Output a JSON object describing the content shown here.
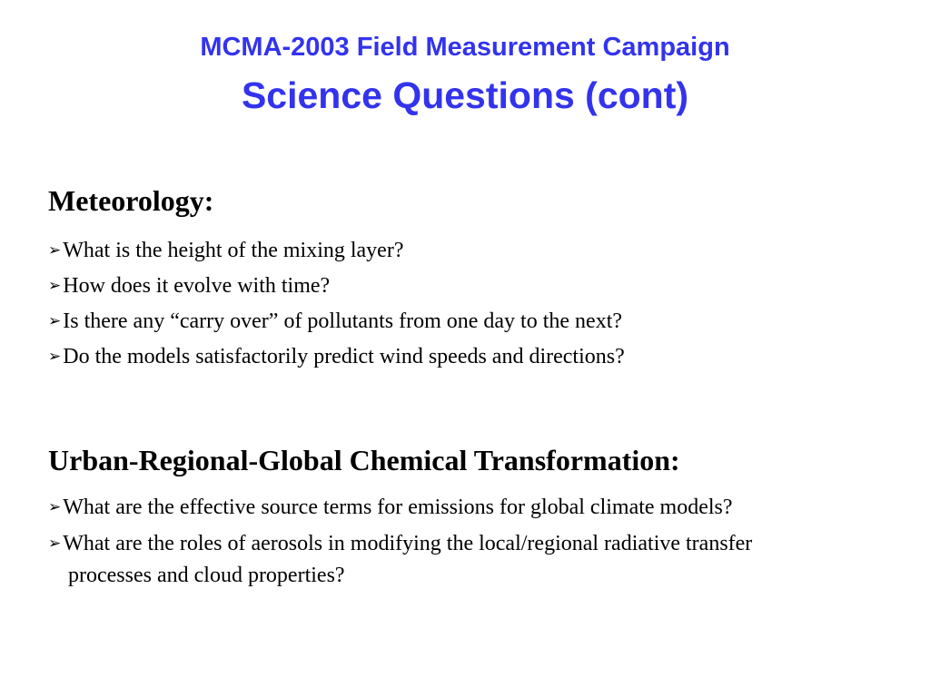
{
  "title": "MCMA-2003 Field Measurement Campaign",
  "subtitle": "Science Questions (cont)",
  "accent_color": "#3333ee",
  "bullet_icon": "arrowhead-bullet",
  "sections": [
    {
      "heading": "Meteorology:",
      "bullets": [
        "What is the height of the mixing layer?",
        "How does it evolve with time?",
        "Is there any “carry over” of pollutants from one day to the next?",
        "Do the models satisfactorily predict wind speeds and directions?"
      ]
    },
    {
      "heading": "Urban-Regional-Global Chemical Transformation:",
      "bullets": [
        "What are the effective source terms for emissions for global climate models?",
        "What are the roles of aerosols in modifying the local/regional radiative transfer"
      ],
      "continuation": "processes and cloud properties?"
    }
  ]
}
